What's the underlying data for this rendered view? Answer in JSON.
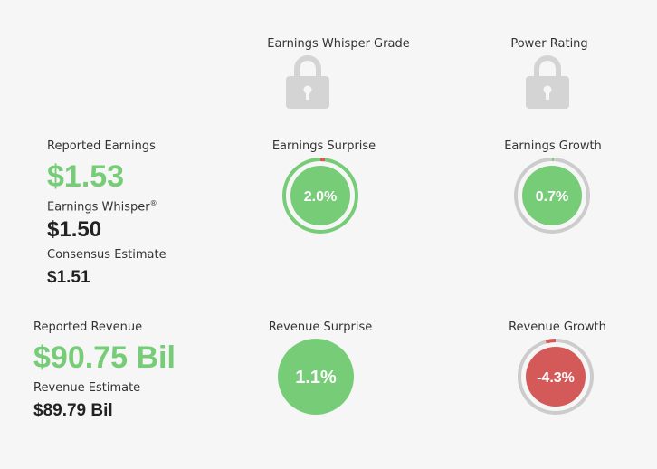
{
  "header": {
    "whisper_grade_label": "Earnings Whisper Grade",
    "power_rating_label": "Power Rating"
  },
  "earnings": {
    "reported_label": "Reported Earnings",
    "reported_value": "$1.53",
    "whisper_label": "Earnings Whisper",
    "whisper_mark": "®",
    "whisper_value": "$1.50",
    "consensus_label": "Consensus Estimate",
    "consensus_value": "$1.51",
    "surprise_label": "Earnings Surprise",
    "surprise_value": "2.0%",
    "surprise_percent": 2.0,
    "growth_label": "Earnings Growth",
    "growth_value": "0.7%",
    "growth_percent": 0.7
  },
  "revenue": {
    "reported_label": "Reported Revenue",
    "reported_value": "$90.75 Bil",
    "estimate_label": "Revenue Estimate",
    "estimate_value": "$89.79 Bil",
    "surprise_label": "Revenue Surprise",
    "surprise_value": "1.1%",
    "surprise_percent": 1.1,
    "growth_label": "Revenue Growth",
    "growth_value": "-4.3%",
    "growth_percent": -4.3
  },
  "colors": {
    "positive": "#77cc77",
    "negative": "#d45a5a",
    "neutral_ring": "#cccccc",
    "lock": "#d4d4d4",
    "background": "#f6f6f6"
  },
  "icons": {
    "grade_lock": "lock-icon",
    "rating_lock": "lock-icon"
  }
}
